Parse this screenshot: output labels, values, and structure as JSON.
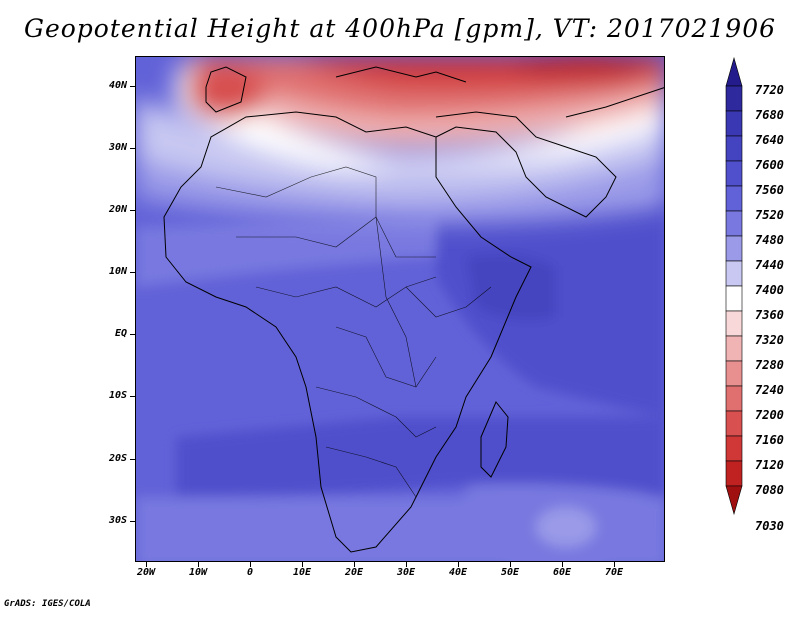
{
  "title": "Geopotential Height at 400hPa [gpm], VT: 2017021906",
  "credit": "GrADS: IGES/COLA",
  "lat_labels": [
    "40N",
    "30N",
    "20N",
    "10N",
    "EQ",
    "10S",
    "20S",
    "30S"
  ],
  "lon_labels": [
    "20W",
    "10W",
    "0",
    "10E",
    "20E",
    "30E",
    "40E",
    "50E",
    "60E",
    "70E"
  ],
  "colorbar": {
    "levels": [
      "7720",
      "7680",
      "7640",
      "7600",
      "7560",
      "7520",
      "7480",
      "7440",
      "7400",
      "7360",
      "7320",
      "7280",
      "7240",
      "7200",
      "7160",
      "7120",
      "7080",
      "7030"
    ],
    "colors": [
      "#241c8c",
      "#2e2a9e",
      "#3a38b2",
      "#4444c0",
      "#5050cc",
      "#6262d8",
      "#7878e0",
      "#9a9ae8",
      "#c8c8f2",
      "#ffffff",
      "#f8d8d8",
      "#f0b4b4",
      "#e89090",
      "#e07070",
      "#d85050",
      "#d03838",
      "#c02222",
      "#a01010"
    ]
  }
}
